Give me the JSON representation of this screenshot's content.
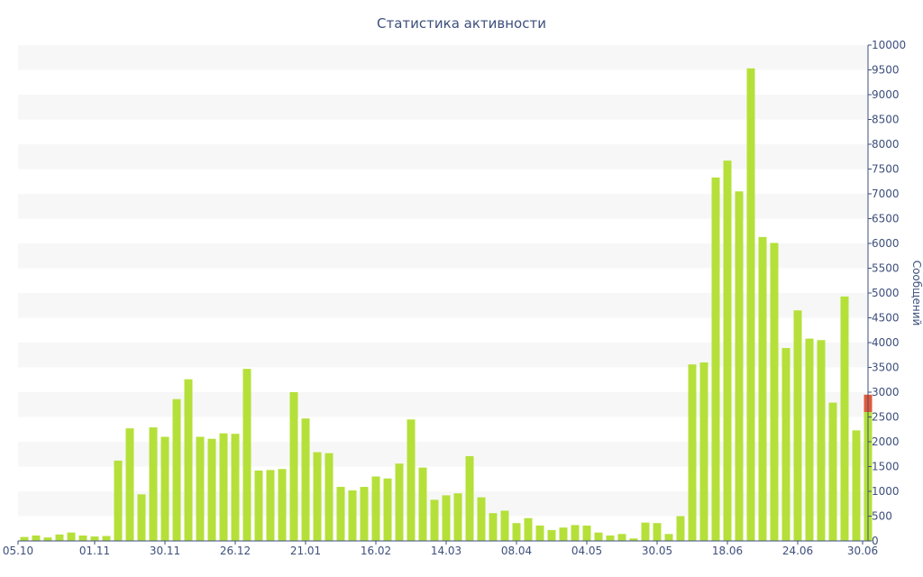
{
  "chart_data": {
    "type": "bar",
    "title": "Статистика активности",
    "xlabel": "",
    "ylabel": "Сообщений",
    "ylim": [
      0,
      10000
    ],
    "y_ticks": [
      0,
      500,
      1000,
      1500,
      2000,
      2500,
      3000,
      3500,
      4000,
      4500,
      5000,
      5500,
      6000,
      6500,
      7000,
      7500,
      8000,
      8500,
      9000,
      9500,
      10000
    ],
    "x_tick_labels": [
      {
        "index": 0,
        "label": "05.10"
      },
      {
        "index": 6,
        "label": "01.11"
      },
      {
        "index": 12,
        "label": "30.11"
      },
      {
        "index": 18,
        "label": "26.12"
      },
      {
        "index": 24,
        "label": "21.01"
      },
      {
        "index": 30,
        "label": "16.02"
      },
      {
        "index": 36,
        "label": "14.03"
      },
      {
        "index": 42,
        "label": "08.04"
      },
      {
        "index": 48,
        "label": "04.05"
      },
      {
        "index": 54,
        "label": "30.05"
      },
      {
        "index": 60,
        "label": "18.06"
      },
      {
        "index": 66,
        "label": "24.06"
      },
      {
        "index": 72,
        "label": "30.06"
      }
    ],
    "grid": "horizontal-bands",
    "y_axis_position": "right",
    "colors": {
      "bar": "#b5e03a",
      "highlight": "#e05a3a",
      "text": "#3d4f7c",
      "band": "#f7f7f7",
      "axis": "#3d4f7c"
    },
    "values": [
      80,
      110,
      70,
      130,
      170,
      110,
      90,
      100,
      1620,
      2270,
      940,
      2290,
      2100,
      2860,
      3260,
      2100,
      2060,
      2170,
      2160,
      3470,
      1420,
      1430,
      1450,
      3000,
      2470,
      1790,
      1770,
      1090,
      1020,
      1090,
      1300,
      1260,
      1560,
      2450,
      1480,
      830,
      920,
      960,
      1710,
      880,
      560,
      610,
      360,
      460,
      310,
      220,
      270,
      320,
      310,
      170,
      110,
      140,
      50,
      370,
      360,
      140,
      500,
      3560,
      3600,
      7330,
      7670,
      7050,
      9530,
      6130,
      6010,
      3890,
      4650,
      4080,
      4050,
      2790,
      4930,
      2230,
      2600
    ],
    "last_bar_highlight": {
      "base": 2600,
      "top": 2950
    }
  }
}
